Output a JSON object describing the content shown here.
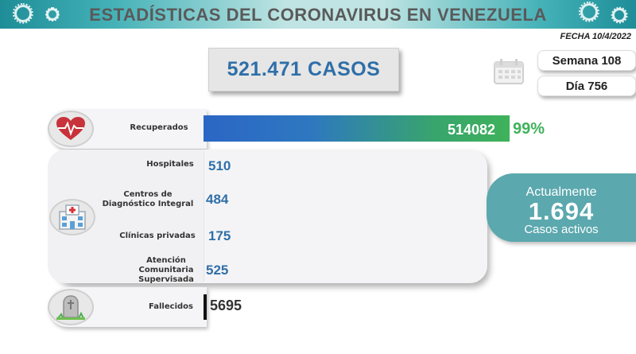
{
  "header": {
    "title": "ESTADÍSTICAS DEL CORONAVIRUS EN VENEZUELA"
  },
  "fecha": "FECHA 10/4/2022",
  "casos": "521.471 CASOS",
  "semana": "Semana 108",
  "dia": "Día 756",
  "recuperados": {
    "label": "Recuperados",
    "value": "514082",
    "percent": "99%",
    "fraction": 0.99
  },
  "centros": {
    "hospitales": {
      "label": "Hospitales",
      "value": "510"
    },
    "cdi": {
      "label": "Centros de Diagnóstico Integral",
      "value": "484"
    },
    "clinicas": {
      "label": "Clínicas privadas",
      "value": "175"
    },
    "atencion": {
      "label": "Atención Comunitaria Supervisada",
      "value": "525"
    }
  },
  "activos": {
    "top": "Actualmente",
    "value": "1.694",
    "bottom": "Casos activos"
  },
  "fallecidos": {
    "label": "Fallecidos",
    "value": "5695"
  },
  "colors": {
    "teal": "#5ba8ae",
    "blue": "#2f6fa8",
    "green": "#3fb25a",
    "header_text": "#5a5a5a"
  },
  "icons": [
    "virus-icon",
    "calendar-icon",
    "heart-pulse-icon",
    "hospital-icon",
    "gravestone-icon"
  ]
}
